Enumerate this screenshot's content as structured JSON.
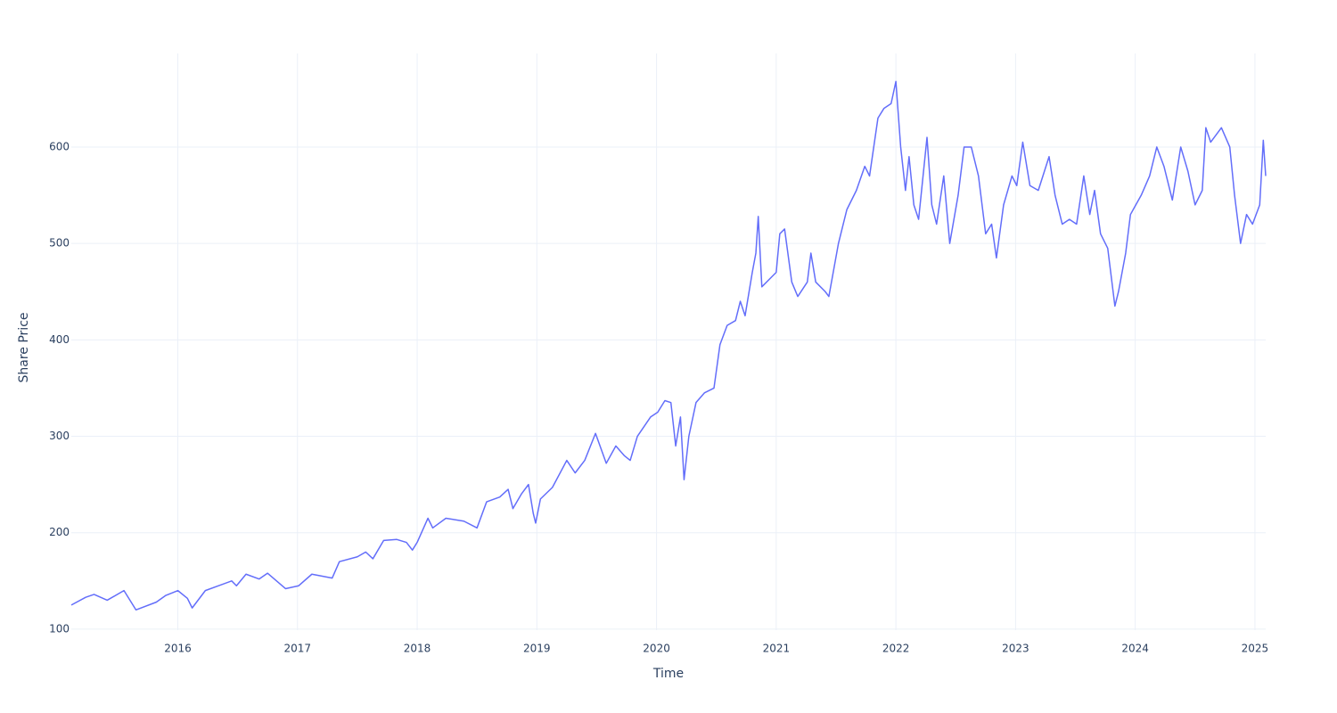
{
  "chart_data": {
    "type": "line",
    "x_label": "Time",
    "y_label": "Share Price",
    "grid": true,
    "xlim": [
      2015.11,
      2025.09
    ],
    "ylim": [
      99,
      697
    ],
    "xticks": [
      2016,
      2017,
      2018,
      2019,
      2020,
      2021,
      2022,
      2023,
      2024,
      2025
    ],
    "yticks": [
      100,
      200,
      300,
      400,
      500,
      600
    ],
    "x": [
      2015.11,
      2015.23,
      2015.3,
      2015.41,
      2015.55,
      2015.65,
      2015.82,
      2015.9,
      2016.0,
      2016.08,
      2016.12,
      2016.23,
      2016.45,
      2016.49,
      2016.57,
      2016.68,
      2016.75,
      2016.9,
      2017.01,
      2017.12,
      2017.29,
      2017.35,
      2017.5,
      2017.57,
      2017.63,
      2017.72,
      2017.83,
      2017.91,
      2017.96,
      2018.0,
      2018.09,
      2018.13,
      2018.24,
      2018.39,
      2018.5,
      2018.58,
      2018.69,
      2018.76,
      2018.8,
      2018.87,
      2018.93,
      2018.97,
      2018.99,
      2019.03,
      2019.13,
      2019.25,
      2019.32,
      2019.4,
      2019.49,
      2019.58,
      2019.66,
      2019.73,
      2019.78,
      2019.84,
      2019.95,
      2020.01,
      2020.07,
      2020.12,
      2020.16,
      2020.2,
      2020.23,
      2020.27,
      2020.33,
      2020.4,
      2020.48,
      2020.53,
      2020.59,
      2020.66,
      2020.7,
      2020.74,
      2020.8,
      2020.83,
      2020.85,
      2020.88,
      2020.96,
      2021.0,
      2021.03,
      2021.07,
      2021.13,
      2021.18,
      2021.26,
      2021.29,
      2021.33,
      2021.41,
      2021.44,
      2021.52,
      2021.59,
      2021.67,
      2021.74,
      2021.78,
      2021.85,
      2021.9,
      2021.96,
      2022.0,
      2022.04,
      2022.08,
      2022.11,
      2022.15,
      2022.19,
      2022.26,
      2022.3,
      2022.34,
      2022.4,
      2022.45,
      2022.52,
      2022.57,
      2022.63,
      2022.69,
      2022.75,
      2022.8,
      2022.84,
      2022.9,
      2022.97,
      2023.01,
      2023.06,
      2023.12,
      2023.19,
      2023.28,
      2023.33,
      2023.39,
      2023.45,
      2023.51,
      2023.57,
      2023.62,
      2023.66,
      2023.71,
      2023.77,
      2023.83,
      2023.86,
      2023.92,
      2023.96,
      2024.05,
      2024.12,
      2024.18,
      2024.24,
      2024.31,
      2024.38,
      2024.44,
      2024.5,
      2024.56,
      2024.59,
      2024.63,
      2024.72,
      2024.79,
      2024.83,
      2024.88,
      2024.93,
      2024.98,
      2025.04,
      2025.07,
      2025.09
    ],
    "series": [
      {
        "name": "Share Price",
        "color": "#636efa",
        "values": [
          125,
          133,
          136,
          130,
          140,
          120,
          128,
          135,
          140,
          132,
          122,
          140,
          150,
          145,
          157,
          152,
          158,
          142,
          145,
          157,
          153,
          170,
          175,
          180,
          173,
          192,
          193,
          190,
          182,
          190,
          215,
          205,
          215,
          212,
          205,
          232,
          237,
          245,
          225,
          240,
          250,
          220,
          210,
          235,
          247,
          275,
          262,
          275,
          303,
          272,
          290,
          280,
          275,
          300,
          320,
          325,
          337,
          335,
          290,
          320,
          255,
          300,
          335,
          345,
          350,
          395,
          415,
          420,
          440,
          425,
          470,
          490,
          528,
          455,
          465,
          470,
          510,
          515,
          460,
          445,
          460,
          490,
          460,
          450,
          445,
          500,
          535,
          555,
          580,
          570,
          630,
          640,
          645,
          668,
          600,
          555,
          590,
          540,
          525,
          610,
          540,
          520,
          570,
          500,
          550,
          600,
          600,
          570,
          510,
          520,
          485,
          540,
          570,
          560,
          605,
          560,
          555,
          590,
          550,
          520,
          525,
          520,
          570,
          530,
          555,
          510,
          495,
          435,
          450,
          490,
          530,
          550,
          570,
          600,
          580,
          545,
          600,
          575,
          540,
          555,
          620,
          605,
          620,
          600,
          550,
          500,
          530,
          520,
          540,
          607,
          570
        ]
      }
    ]
  }
}
